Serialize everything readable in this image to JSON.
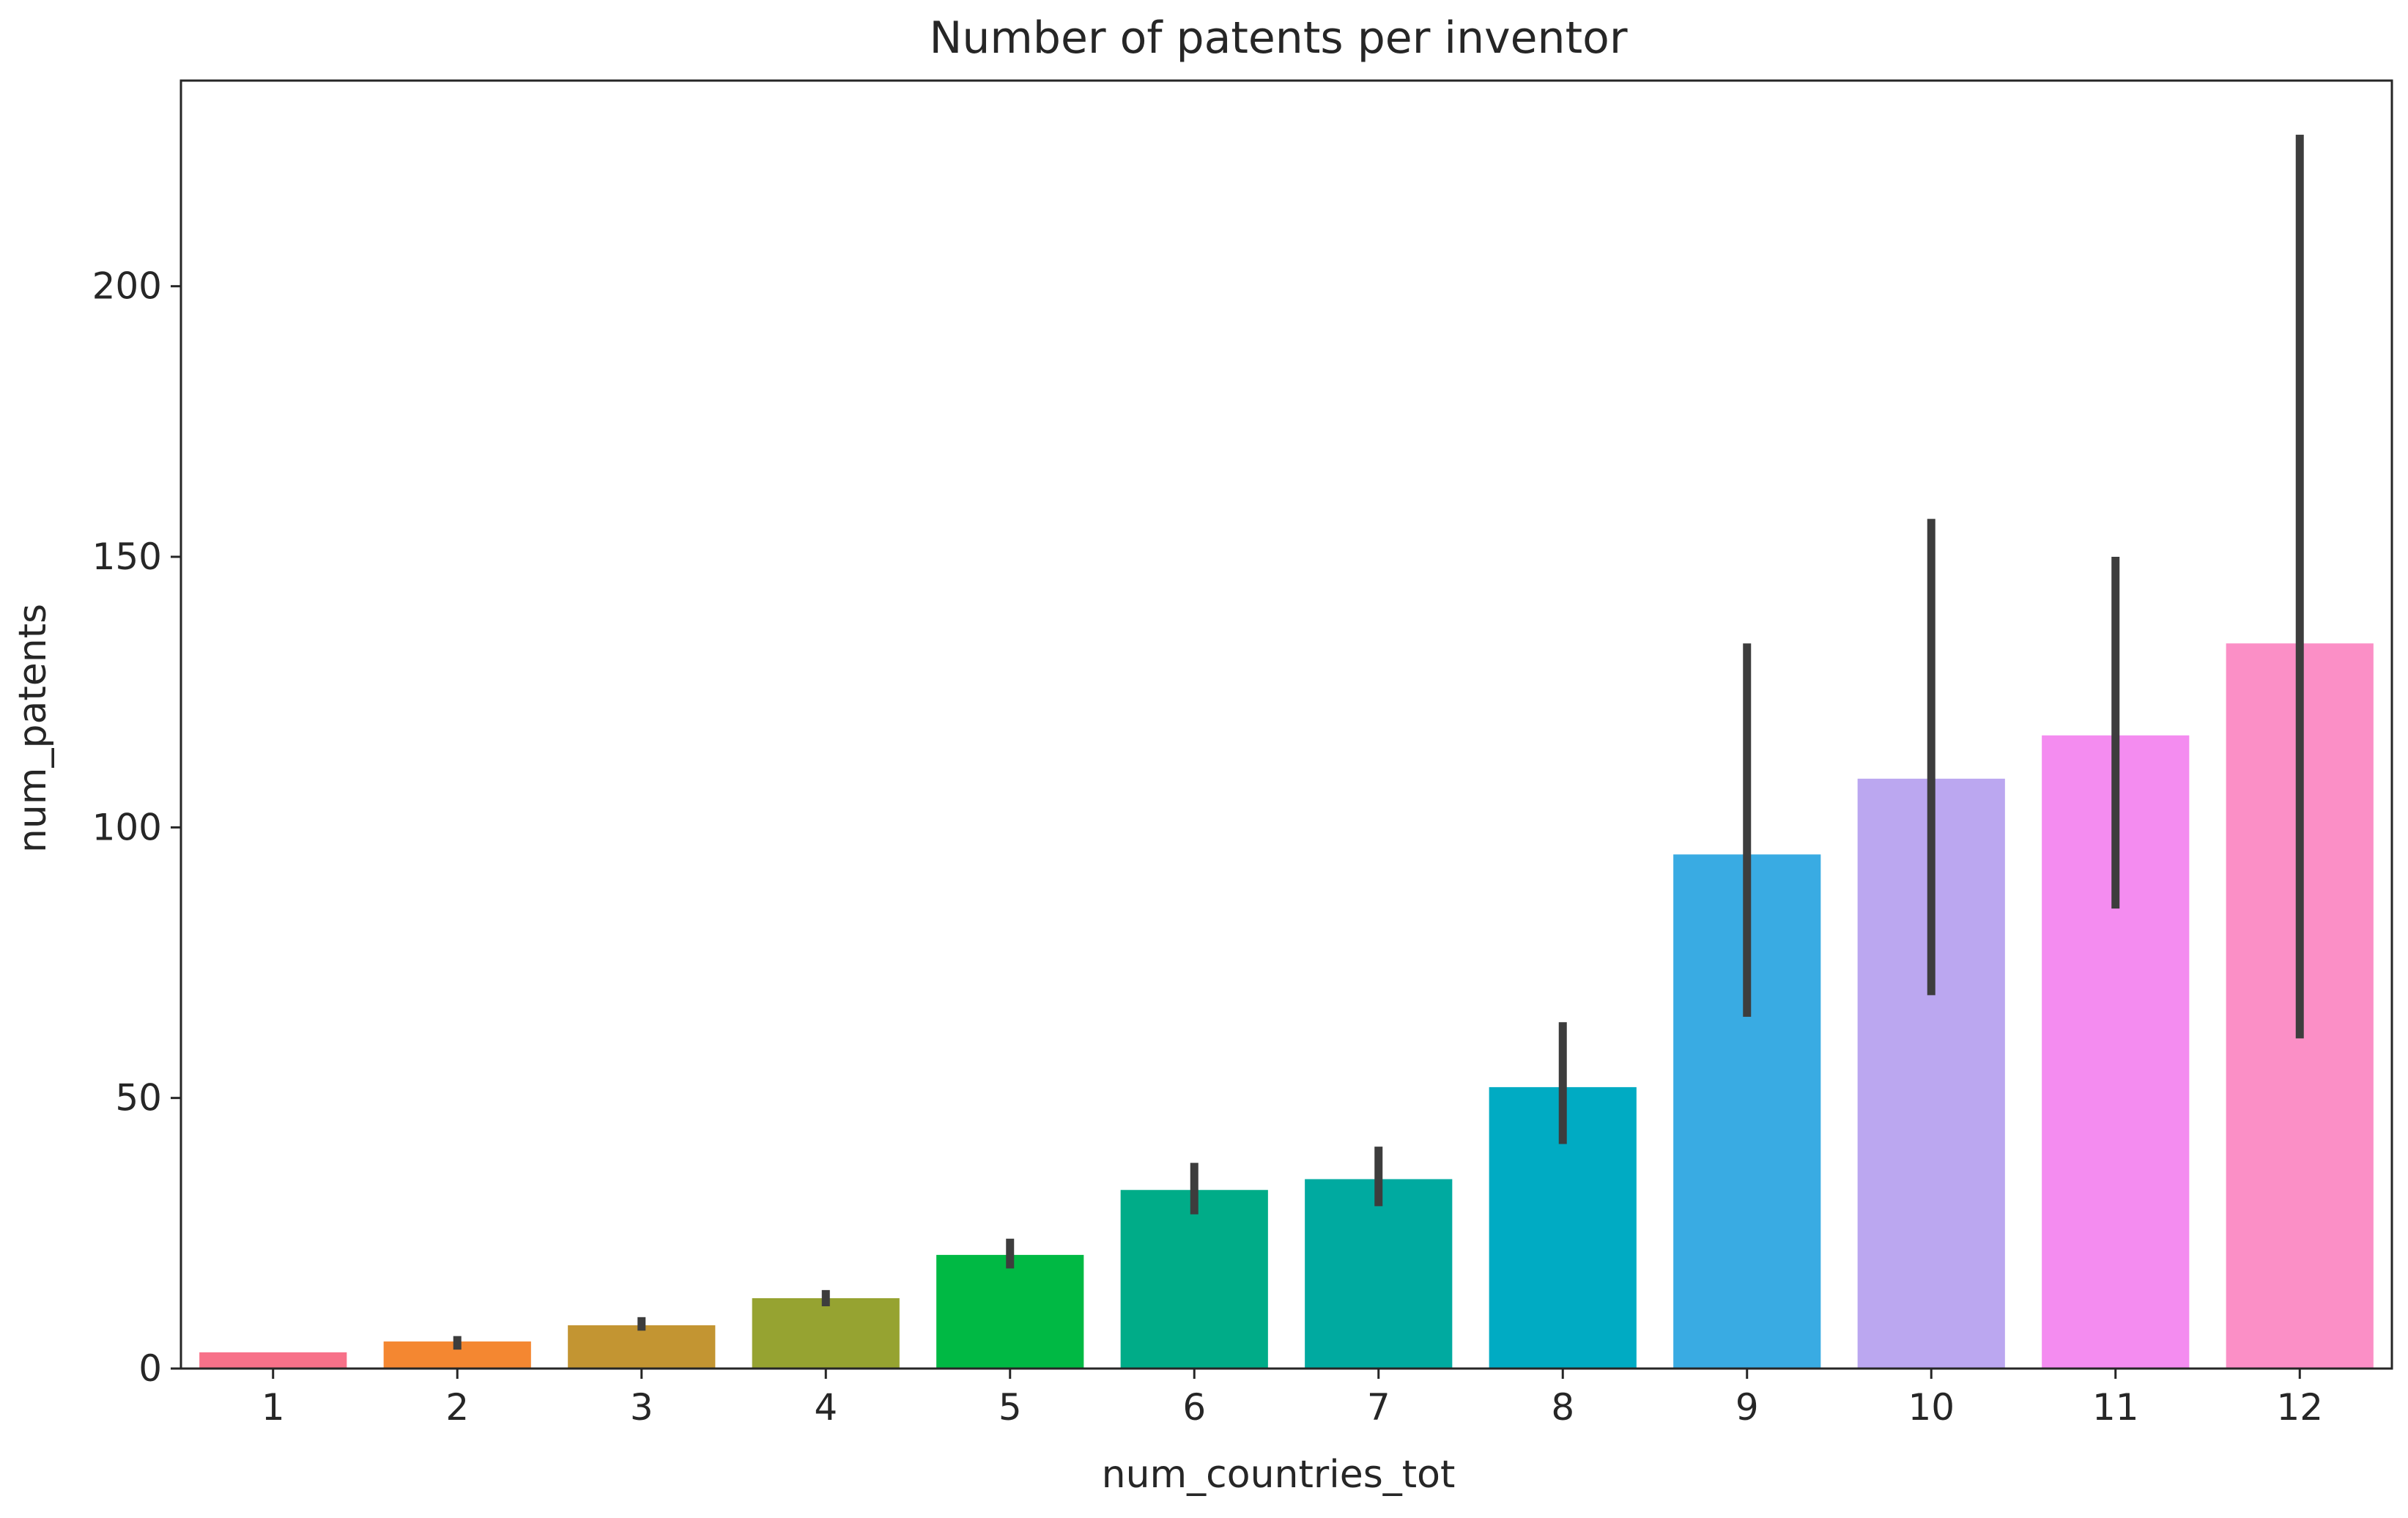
{
  "chart_data": {
    "type": "bar",
    "title": "Number of patents per inventor",
    "xlabel": "num_countries_tot",
    "ylabel": "num_patents",
    "categories": [
      "1",
      "2",
      "3",
      "4",
      "5",
      "6",
      "7",
      "8",
      "9",
      "10",
      "11",
      "12"
    ],
    "values": [
      3,
      5,
      8,
      13,
      21,
      33,
      35,
      52,
      95,
      109,
      117,
      134
    ],
    "error_bars": [
      [
        3,
        3
      ],
      [
        3.5,
        6
      ],
      [
        7,
        9.5
      ],
      [
        11.5,
        14.5
      ],
      [
        18.5,
        24
      ],
      [
        28.5,
        38
      ],
      [
        30,
        41
      ],
      [
        41.5,
        64
      ],
      [
        65,
        134
      ],
      [
        69,
        157
      ],
      [
        85,
        150
      ],
      [
        61,
        228
      ]
    ],
    "colors": [
      "#f77189",
      "#f48731",
      "#c39532",
      "#96a331",
      "#00b944",
      "#00ac88",
      "#00aaa0",
      "#00abc3",
      "#39abe3",
      "#bba7f0",
      "#f48cf0",
      "#fb8fc6"
    ],
    "ylim": [
      0,
      238
    ],
    "yticks": [
      0,
      50,
      100,
      150,
      200
    ],
    "grid": false,
    "legend": "none"
  }
}
